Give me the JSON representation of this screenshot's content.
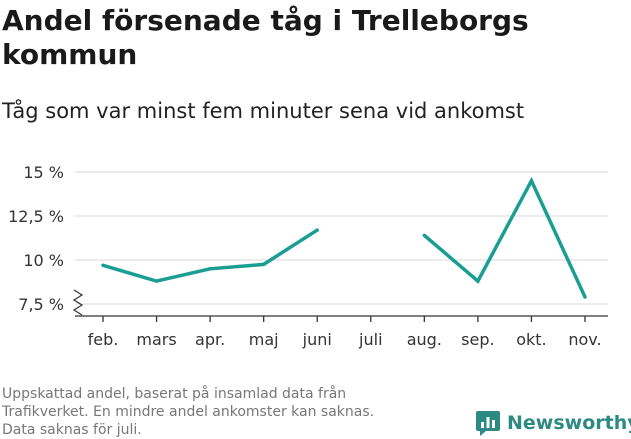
{
  "header": {
    "title": "Andel försenade tåg i Trelleborgs kommun",
    "subtitle": "Tåg som var minst fem minuter sena vid ankomst"
  },
  "footer": {
    "lines": [
      "Uppskattad andel, baserat på insamlad data från",
      "Trafikverket. En mindre andel ankomster kan saknas.",
      "Data saknas för juli."
    ],
    "brand": "Newsworthy"
  },
  "colors": {
    "line": "#1a9e94",
    "grid": "#d9d9d9",
    "axis": "#333333",
    "brand": "#2d8a83"
  },
  "icons": {
    "brand_logo": "bar-chart-icon",
    "axis_break": "axis-break-icon"
  },
  "chart_data": {
    "type": "line",
    "title": "Andel försenade tåg i Trelleborgs kommun",
    "subtitle": "Tåg som var minst fem minuter sena vid ankomst",
    "categories": [
      "feb.",
      "mars",
      "apr.",
      "maj",
      "juni",
      "juli",
      "aug.",
      "sep.",
      "okt.",
      "nov."
    ],
    "series": [
      {
        "values": [
          9.7,
          8.8,
          9.5,
          9.75,
          11.7,
          null,
          11.4,
          8.8,
          14.5,
          7.9
        ]
      }
    ],
    "yticks": [
      7.5,
      10,
      12.5,
      15
    ],
    "ytick_labels": [
      "7,5 %",
      "10 %",
      "12,5 %",
      "15 %"
    ],
    "ylim": [
      7.5,
      15
    ],
    "xlabel": "",
    "ylabel": "",
    "grid": true,
    "axis_break": true
  }
}
